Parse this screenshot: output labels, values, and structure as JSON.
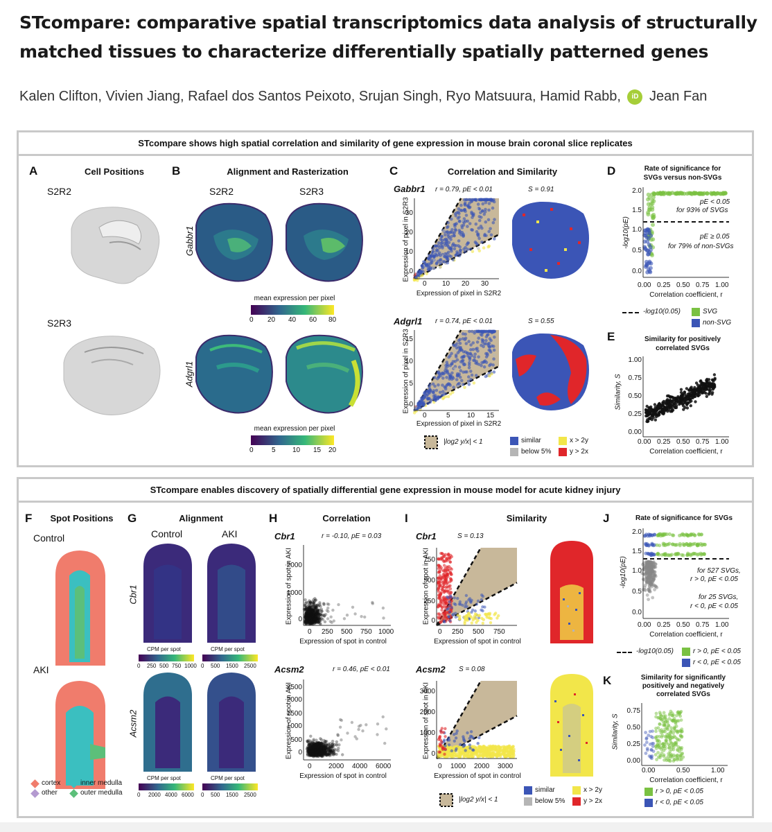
{
  "paper": {
    "title": "STcompare: comparative spatial transcriptomics data analysis of structurally matched tissues to characterize differentially spatially patterned genes",
    "authors_before": "Kalen Clifton, Vivien Jiang, Rafael dos Santos Peixoto, Srujan Singh, Ryo Matsuura, Hamid Rabb,",
    "orcid": "iD",
    "authors_after": "Jean Fan"
  },
  "top": {
    "header": "STcompare shows high spatial correlation and similarity of gene expression in mouse brain coronal slice replicates",
    "A": {
      "label": "A",
      "title": "Cell Positions",
      "s1": "S2R2",
      "s2": "S2R3"
    },
    "B": {
      "label": "B",
      "title": "Alignment and Rasterization",
      "col1": "S2R2",
      "col2": "S2R3",
      "gene1": "Gabbr1",
      "gene2": "Adgrl1",
      "cb1_title": "mean expression per pixel",
      "cb1_ticks": [
        "0",
        "20",
        "40",
        "60",
        "80"
      ],
      "cb2_title": "mean expression per pixel",
      "cb2_ticks": [
        "0",
        "5",
        "10",
        "15",
        "20"
      ]
    },
    "C": {
      "label": "C",
      "title": "Correlation and Similarity",
      "g1": "Gabbr1",
      "g1_stat": "r = 0.79, pE < 0.01",
      "g1_s": "S = 0.91",
      "g2": "Adgrl1",
      "g2_stat": "r = 0.74, pE < 0.01",
      "g2_s": "S = 0.55",
      "xlabel": "Expression of pixel in S2R2",
      "ylabel": "Expression of pixel in S2R3",
      "t1x": [
        "0",
        "10",
        "20",
        "30"
      ],
      "t1y": [
        "0",
        "10",
        "20",
        "30"
      ],
      "t2x": [
        "0",
        "5",
        "10",
        "15"
      ],
      "t2y": [
        "0",
        "5",
        "10",
        "15"
      ],
      "legend_eq": "|log2 y/x| < 1",
      "legend": [
        "similar",
        "below 5%",
        "x > 2y",
        "y > 2x"
      ]
    },
    "D": {
      "label": "D",
      "title1": "Rate of significance for",
      "title2": "SVGs versus non-SVGs",
      "ann1a": "pE < 0.05",
      "ann1b": "for 93% of SVGs",
      "ann2a": "pE ≥ 0.05",
      "ann2b": "for 79% of non-SVGs",
      "ylabel": "-log10(pE)",
      "xlabel": "Correlation coefficient, r",
      "xticks": [
        "0.00",
        "0.25",
        "0.50",
        "0.75",
        "1.00"
      ],
      "yticks": [
        "0.0",
        "0.5",
        "1.0",
        "1.5",
        "2.0"
      ],
      "leg_line": "-log10(0.05)",
      "leg_svg": "SVG",
      "leg_non": "non-SVG"
    },
    "E": {
      "label": "E",
      "title1": "Similarity for positively",
      "title2": "correlated SVGs",
      "ylabel": "Similarity, S",
      "xlabel": "Correlation coefficient, r",
      "xticks": [
        "0.00",
        "0.25",
        "0.50",
        "0.75",
        "1.00"
      ],
      "yticks": [
        "0.00",
        "0.25",
        "0.50",
        "0.75",
        "1.00"
      ]
    }
  },
  "bottom": {
    "header": "STcompare enables discovery of spatially differential gene expression in mouse model for acute kidney injury",
    "F": {
      "label": "F",
      "title": "Spot Positions",
      "s1": "Control",
      "s2": "AKI",
      "legend": [
        "cortex",
        "inner medulla",
        "other",
        "outer medulla"
      ]
    },
    "G": {
      "label": "G",
      "title": "Alignment",
      "col1": "Control",
      "col2": "AKI",
      "gene1": "Cbr1",
      "gene2": "Acsm2",
      "cb_title": "CPM per spot",
      "cb1a": [
        "0",
        "250",
        "500",
        "750",
        "1000"
      ],
      "cb1b": [
        "0",
        "500",
        "1500",
        "2500"
      ],
      "cb2a": [
        "0",
        "2000",
        "4000",
        "6000"
      ],
      "cb2b": [
        "0",
        "500",
        "1500",
        "2500"
      ]
    },
    "H": {
      "label": "H",
      "title": "Correlation",
      "g1": "Cbr1",
      "g1_stat": "r = -0.10, pE = 0.03",
      "g2": "Acsm2",
      "g2_stat": "r = 0.46, pE < 0.01",
      "xlabel": "Expression of spot in control",
      "ylabel": "Expression of spot in AKI",
      "t1x": [
        "0",
        "250",
        "500",
        "750",
        "1000"
      ],
      "t1y": [
        "0",
        "1000",
        "2000"
      ],
      "t2x": [
        "0",
        "2000",
        "4000",
        "6000"
      ],
      "t2y": [
        "0",
        "500",
        "1000",
        "1500",
        "2000",
        "2500"
      ]
    },
    "I": {
      "label": "I",
      "title": "Similarity",
      "g1": "Cbr1",
      "g1_s": "S = 0.13",
      "g2": "Acsm2",
      "g2_s": "S = 0.08",
      "xlabel": "Expression of spot in control",
      "ylabel": "Expression of spot in AKI",
      "t1x": [
        "0",
        "250",
        "500",
        "750"
      ],
      "t1y": [
        "0",
        "250",
        "500",
        "750"
      ],
      "t2x": [
        "0",
        "1000",
        "2000",
        "3000"
      ],
      "t2y": [
        "0",
        "1000",
        "2000",
        "3000"
      ],
      "legend_eq": "|log2 y/x| < 1",
      "legend": [
        "similar",
        "below 5%",
        "x > 2y",
        "y > 2x"
      ]
    },
    "J": {
      "label": "J",
      "title": "Rate of significance for SVGs",
      "ann1a": "for 527 SVGs,",
      "ann1b": "r > 0, pE < 0.05",
      "ann2a": "for 25 SVGs,",
      "ann2b": "r < 0, pE < 0.05",
      "ylabel": "-log10(pE)",
      "xlabel": "Correlation coefficient, r",
      "xticks": [
        "0.00",
        "0.25",
        "0.50",
        "0.75",
        "1.00"
      ],
      "yticks": [
        "0.0",
        "0.5",
        "1.0",
        "1.5",
        "2.0"
      ],
      "leg_line": "-log10(0.05)",
      "leg_pos": "r > 0, pE < 0.05",
      "leg_neg": "r < 0, pE < 0.05"
    },
    "K": {
      "label": "K",
      "title1": "Similarity for significantly",
      "title2": "positively and negatively",
      "title3": "correlated SVGs",
      "ylabel": "Similarity, S",
      "xlabel": "Correlation coefficient, r",
      "xticks": [
        "0.00",
        "0.50",
        "1.00"
      ],
      "yticks": [
        "0.00",
        "0.25",
        "0.50",
        "0.75"
      ],
      "leg_pos": "r > 0, pE < 0.05",
      "leg_neg": "r < 0, pE < 0.05"
    }
  },
  "colors": {
    "similar": "#3b55b6",
    "below": "#b5b5b5",
    "x2y": "#f2e64a",
    "y2x": "#e0262a",
    "svg": "#7ac142",
    "nonsvg": "#3b55b6",
    "tan": "#c8b89a",
    "box": "#c9c9c9"
  }
}
